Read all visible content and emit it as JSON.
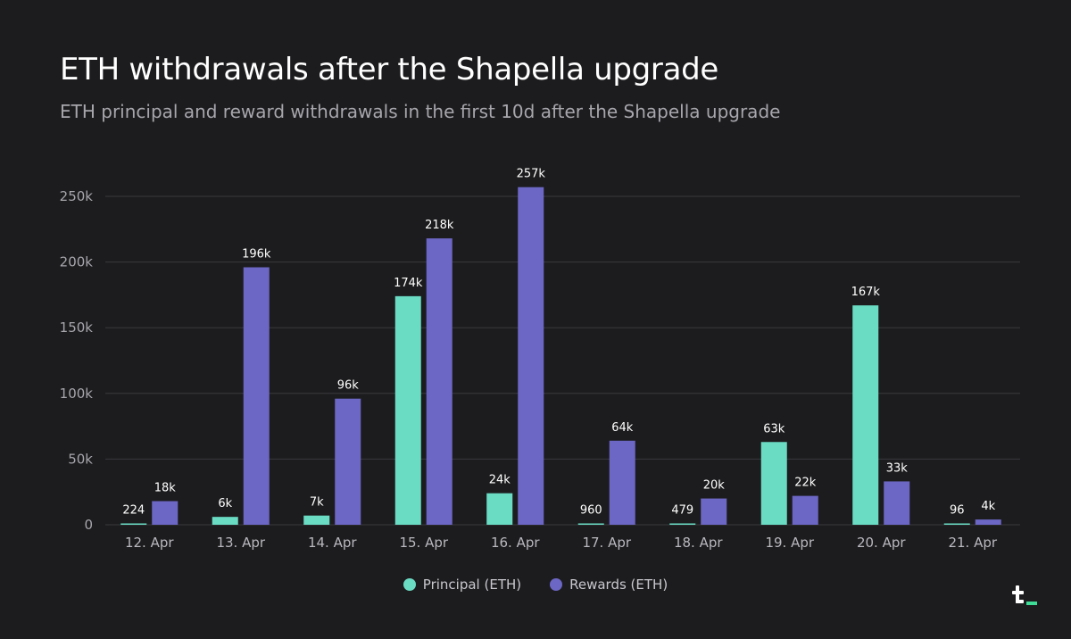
{
  "title": "ETH withdrawals after the Shapella upgrade",
  "subtitle": "ETH principal and reward withdrawals in the first 10d after the Shapella upgrade",
  "colors": {
    "background": "#1c1c1e",
    "principal": "#6adcc4",
    "rewards": "#6c66c4",
    "grid": "#3a3a3e",
    "brand_accent": "#3ddc97"
  },
  "chart_data": {
    "type": "bar",
    "title": "ETH withdrawals after the Shapella upgrade",
    "xlabel": "",
    "ylabel": "",
    "ylim": [
      0,
      250000
    ],
    "yticks": [
      0,
      50000,
      100000,
      150000,
      200000,
      250000
    ],
    "ytick_labels": [
      "0",
      "50k",
      "100k",
      "150k",
      "200k",
      "250k"
    ],
    "grid": true,
    "legend_position": "bottom-center",
    "categories": [
      "12. Apr",
      "13. Apr",
      "14. Apr",
      "15. Apr",
      "16. Apr",
      "17. Apr",
      "18. Apr",
      "19. Apr",
      "20. Apr",
      "21. Apr"
    ],
    "series": [
      {
        "name": "Principal (ETH)",
        "color": "#6adcc4",
        "values": [
          224,
          6000,
          7000,
          174000,
          24000,
          960,
          479,
          63000,
          167000,
          96
        ],
        "labels": [
          "224",
          "6k",
          "7k",
          "174k",
          "24k",
          "960",
          "479",
          "63k",
          "167k",
          "96"
        ]
      },
      {
        "name": "Rewards (ETH)",
        "color": "#6c66c4",
        "values": [
          18000,
          196000,
          96000,
          218000,
          257000,
          64000,
          20000,
          22000,
          33000,
          4000
        ],
        "labels": [
          "18k",
          "196k",
          "96k",
          "218k",
          "257k",
          "64k",
          "20k",
          "22k",
          "33k",
          "4k"
        ]
      }
    ]
  }
}
